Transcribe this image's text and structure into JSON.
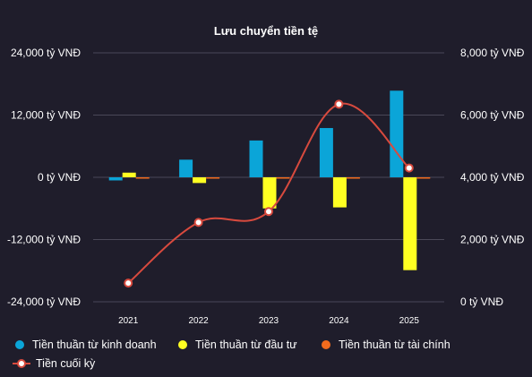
{
  "chart_data": {
    "type": "bar",
    "title": "Lưu chuyển tiền tệ",
    "categories": [
      "2021",
      "2022",
      "2023",
      "2024",
      "2025"
    ],
    "left_axis": {
      "ticks": [
        24000,
        12000,
        0,
        -12000,
        -24000
      ],
      "tick_labels": [
        "24,000 tỷ VNĐ",
        "12,000 tỷ VNĐ",
        "0 tỷ VNĐ",
        "-12,000 tỷ VNĐ",
        "-24,000 tỷ VNĐ"
      ],
      "ylim": [
        -24000,
        24000
      ]
    },
    "right_axis": {
      "ticks": [
        8000,
        6000,
        4000,
        2000,
        0
      ],
      "tick_labels": [
        "8,000 tỷ VNĐ",
        "6,000 tỷ VNĐ",
        "4,000 tỷ VNĐ",
        "2,000 tỷ VNĐ",
        "0 tỷ VNĐ"
      ],
      "ylim": [
        0,
        8000
      ]
    },
    "grid": true,
    "legend_position": "bottom",
    "series": [
      {
        "name": "Tiền thuần từ kinh doanh",
        "type": "bar",
        "axis": "left",
        "color": "#0ba5d8",
        "values": [
          -600,
          3400,
          7100,
          9500,
          16700
        ]
      },
      {
        "name": "Tiền thuần từ đầu tư",
        "type": "bar",
        "axis": "left",
        "color": "#ffff22",
        "values": [
          900,
          -1100,
          -6000,
          -5800,
          -17900
        ]
      },
      {
        "name": "Tiền thuần từ tài chính",
        "type": "bar",
        "axis": "left",
        "color": "#f26b1d",
        "values": [
          -200,
          -200,
          -200,
          -200,
          -200
        ]
      },
      {
        "name": "Tiền cuối kỳ",
        "type": "line",
        "axis": "right",
        "color": "#d84a3e",
        "values": [
          600,
          2550,
          2900,
          6350,
          4300
        ]
      }
    ]
  }
}
